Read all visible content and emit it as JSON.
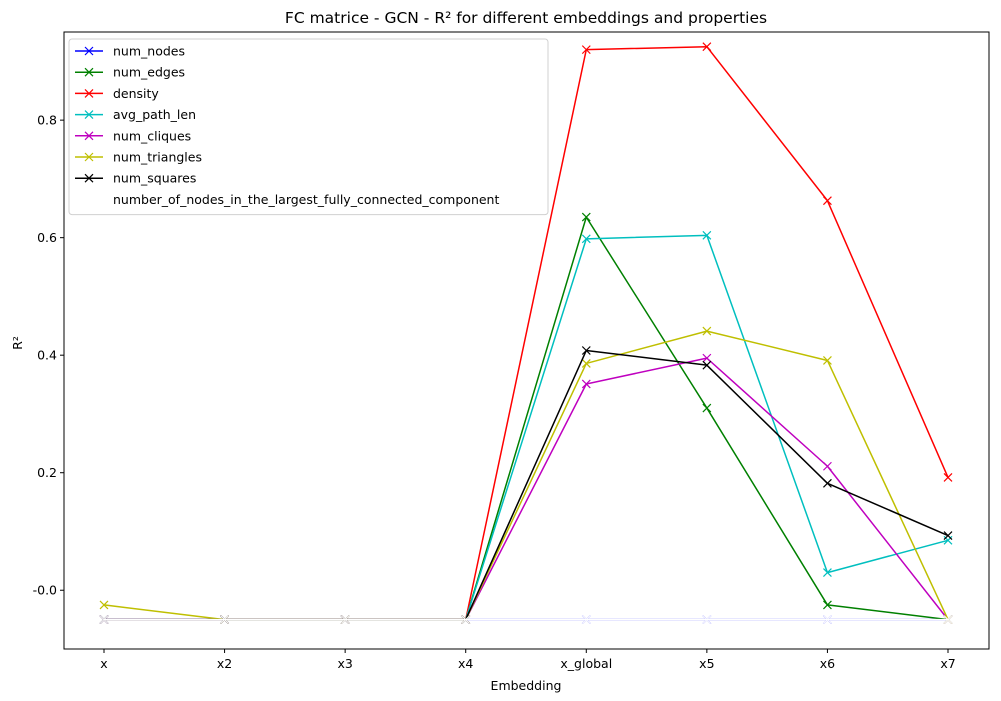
{
  "chart_data": {
    "type": "line",
    "title": "FC matrice - GCN - R² for different embeddings and properties",
    "xlabel": "Embedding",
    "ylabel": "R²",
    "categories": [
      "x",
      "x2",
      "x3",
      "x4",
      "x_global",
      "x5",
      "x6",
      "x7"
    ],
    "ylim": [
      -0.1,
      0.95
    ],
    "yticks": [
      "-0.0",
      "0.2",
      "0.4",
      "0.6",
      "0.8"
    ],
    "ytick_values": [
      0.0,
      0.2,
      0.4,
      0.6,
      0.8
    ],
    "grid": false,
    "legend_position": "top-left",
    "marker": "x",
    "series": [
      {
        "name": "num_nodes",
        "color": "#0000ff",
        "values": [
          -0.05,
          -0.05,
          -0.05,
          -0.05,
          -0.05,
          -0.05,
          -0.05,
          -0.05
        ]
      },
      {
        "name": "num_edges",
        "color": "#008000",
        "values": [
          -0.05,
          -0.05,
          -0.05,
          -0.05,
          0.635,
          0.31,
          -0.025,
          -0.05
        ]
      },
      {
        "name": "density",
        "color": "#ff0000",
        "values": [
          -0.05,
          -0.05,
          -0.05,
          -0.05,
          0.92,
          0.925,
          0.663,
          0.192
        ]
      },
      {
        "name": "avg_path_len",
        "color": "#00bfbf",
        "values": [
          -0.05,
          -0.05,
          -0.05,
          -0.05,
          0.598,
          0.604,
          0.03,
          0.085
        ]
      },
      {
        "name": "num_cliques",
        "color": "#bf00bf",
        "values": [
          -0.05,
          -0.05,
          -0.05,
          -0.05,
          0.351,
          0.395,
          0.211,
          -0.05
        ]
      },
      {
        "name": "num_triangles",
        "color": "#bfbf00",
        "values": [
          -0.025,
          -0.05,
          -0.05,
          -0.05,
          0.386,
          0.441,
          0.391,
          -0.05
        ]
      },
      {
        "name": "num_squares",
        "color": "#000000",
        "values": [
          -0.05,
          -0.05,
          -0.05,
          -0.05,
          0.408,
          0.383,
          0.182,
          0.093
        ]
      },
      {
        "name": "number_of_nodes_in_the_largest_fully_connected_component",
        "color": "#ffffff",
        "values": [
          -0.05,
          -0.05,
          -0.05,
          -0.05,
          -0.05,
          -0.05,
          -0.05,
          -0.05
        ]
      }
    ]
  }
}
